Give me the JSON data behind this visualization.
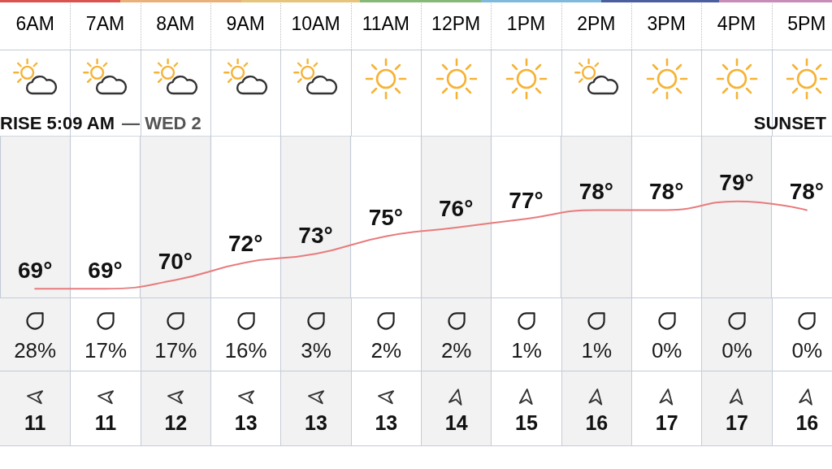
{
  "chart_data": {
    "type": "line",
    "categories": [
      "6AM",
      "7AM",
      "8AM",
      "9AM",
      "10AM",
      "11AM",
      "12PM",
      "1PM",
      "2PM",
      "3PM",
      "4PM",
      "5PM"
    ],
    "values": [
      69,
      69,
      70,
      72,
      73,
      75,
      76,
      77,
      78,
      78,
      79,
      78
    ],
    "value_labels": [
      "69°",
      "69°",
      "70°",
      "72°",
      "73°",
      "75°",
      "76°",
      "77°",
      "78°",
      "78°",
      "79°",
      "78°"
    ],
    "color": "#e87b7d",
    "ylim": [
      68,
      86.5
    ],
    "grid": true,
    "tick_labels": "x",
    "marker": "none",
    "line_style": "solid",
    "annotations": [
      "RISE 5:09 AM",
      "— WED 2",
      "SUNSET",
      "28%",
      "17%",
      "17%",
      "16%",
      "3%",
      "2%",
      "2%",
      "1%",
      "1%",
      "0%",
      "0%",
      "0%",
      "11",
      "11",
      "12",
      "13",
      "13",
      "13",
      "14",
      "15",
      "16",
      "17",
      "17",
      "16"
    ]
  }
}
